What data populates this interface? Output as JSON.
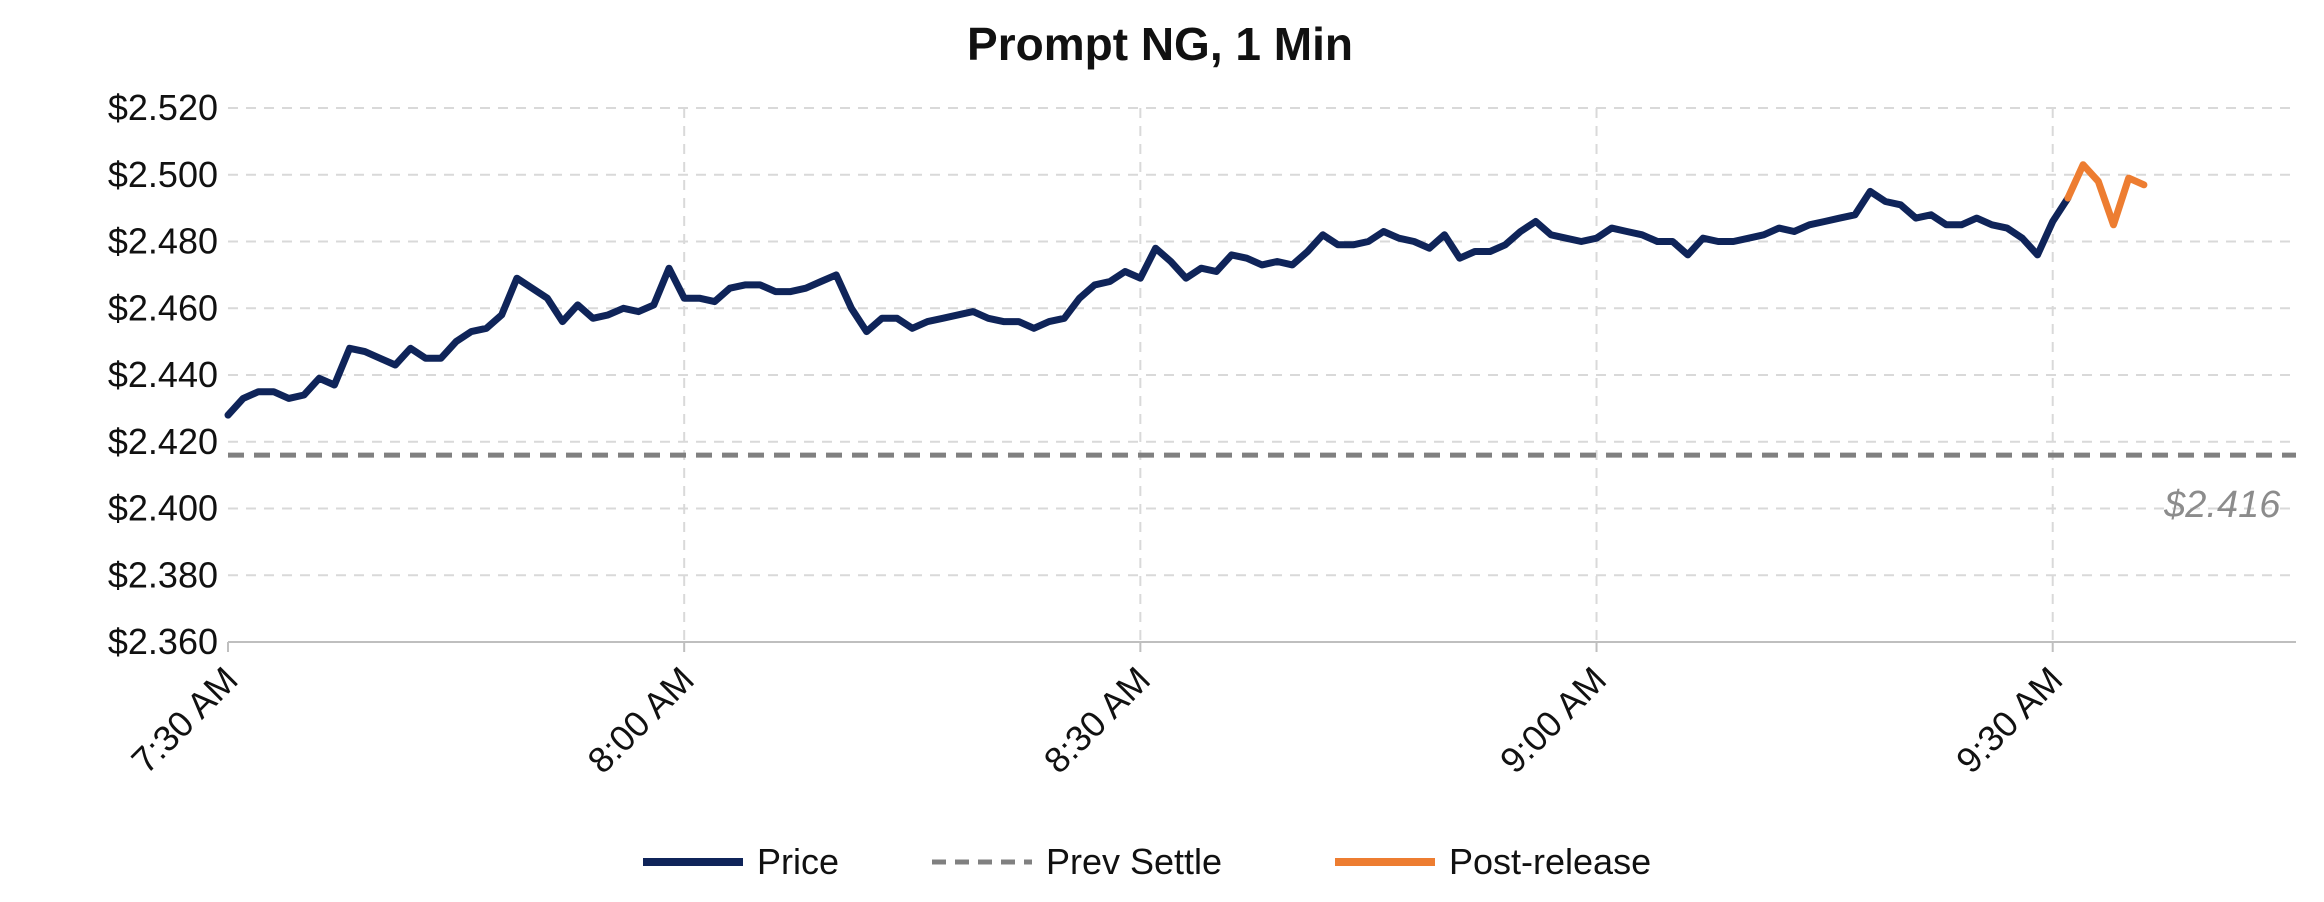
{
  "chart_data": {
    "type": "line",
    "title": "Prompt NG, 1 Min",
    "xlabel": "",
    "ylabel": "",
    "y_tick_labels": [
      "$2.360",
      "$2.380",
      "$2.400",
      "$2.420",
      "$2.440",
      "$2.460",
      "$2.480",
      "$2.500",
      "$2.520"
    ],
    "x_tick_labels": [
      "7:30 AM",
      "8:00 AM",
      "8:30 AM",
      "9:00 AM",
      "9:30 AM"
    ],
    "x_tick_minutes": [
      0,
      30,
      60,
      90,
      120
    ],
    "xlim_minutes": [
      0,
      136
    ],
    "ylim": [
      2.36,
      2.52
    ],
    "grid": true,
    "legend_position": "bottom",
    "series": [
      {
        "name": "Price",
        "color": "#0f2459",
        "style": "solid",
        "x": [
          0,
          1,
          2,
          3,
          4,
          5,
          6,
          7,
          8,
          9,
          10,
          11,
          12,
          13,
          14,
          15,
          16,
          17,
          18,
          19,
          20,
          21,
          22,
          23,
          24,
          25,
          26,
          27,
          28,
          29,
          30,
          31,
          32,
          33,
          34,
          35,
          36,
          37,
          38,
          39,
          40,
          41,
          42,
          43,
          44,
          45,
          46,
          47,
          48,
          49,
          50,
          51,
          52,
          53,
          54,
          55,
          56,
          57,
          58,
          59,
          60,
          61,
          62,
          63,
          64,
          65,
          66,
          67,
          68,
          69,
          70,
          71,
          72,
          73,
          74,
          75,
          76,
          77,
          78,
          79,
          80,
          81,
          82,
          83,
          84,
          85,
          86,
          87,
          88,
          89,
          90,
          91,
          92,
          93,
          94,
          95,
          96,
          97,
          98,
          99,
          100,
          101,
          102,
          103,
          104,
          105,
          106,
          107,
          108,
          109,
          110,
          111,
          112,
          113,
          114,
          115,
          116,
          117,
          118,
          119,
          120,
          121
        ],
        "y": [
          2.428,
          2.433,
          2.435,
          2.435,
          2.433,
          2.434,
          2.439,
          2.437,
          2.448,
          2.447,
          2.445,
          2.443,
          2.448,
          2.445,
          2.445,
          2.45,
          2.453,
          2.454,
          2.458,
          2.469,
          2.466,
          2.463,
          2.456,
          2.461,
          2.457,
          2.458,
          2.46,
          2.459,
          2.461,
          2.472,
          2.463,
          2.463,
          2.462,
          2.466,
          2.467,
          2.467,
          2.465,
          2.465,
          2.466,
          2.468,
          2.47,
          2.46,
          2.453,
          2.457,
          2.457,
          2.454,
          2.456,
          2.457,
          2.458,
          2.459,
          2.457,
          2.456,
          2.456,
          2.454,
          2.456,
          2.457,
          2.463,
          2.467,
          2.468,
          2.471,
          2.469,
          2.478,
          2.474,
          2.469,
          2.472,
          2.471,
          2.476,
          2.475,
          2.473,
          2.474,
          2.473,
          2.477,
          2.482,
          2.479,
          2.479,
          2.48,
          2.483,
          2.481,
          2.48,
          2.478,
          2.482,
          2.475,
          2.477,
          2.477,
          2.479,
          2.483,
          2.486,
          2.482,
          2.481,
          2.48,
          2.481,
          2.484,
          2.483,
          2.482,
          2.48,
          2.48,
          2.476,
          2.481,
          2.48,
          2.48,
          2.481,
          2.482,
          2.484,
          2.483,
          2.485,
          2.486,
          2.487,
          2.488,
          2.495,
          2.492,
          2.491,
          2.487,
          2.488,
          2.485,
          2.485,
          2.487,
          2.485,
          2.484,
          2.481,
          2.476,
          2.486,
          2.493
        ]
      },
      {
        "name": "Prev Settle",
        "color": "#808080",
        "style": "dashed",
        "value": 2.416
      },
      {
        "name": "Post-release",
        "color": "#ed7d31",
        "style": "solid",
        "x": [
          121,
          122,
          123,
          124,
          125,
          126
        ],
        "y": [
          2.493,
          2.503,
          2.498,
          2.485,
          2.499,
          2.497
        ]
      }
    ],
    "annotations": [
      {
        "text": "$2.416",
        "x_minutes": 127,
        "y": 2.416
      }
    ]
  }
}
